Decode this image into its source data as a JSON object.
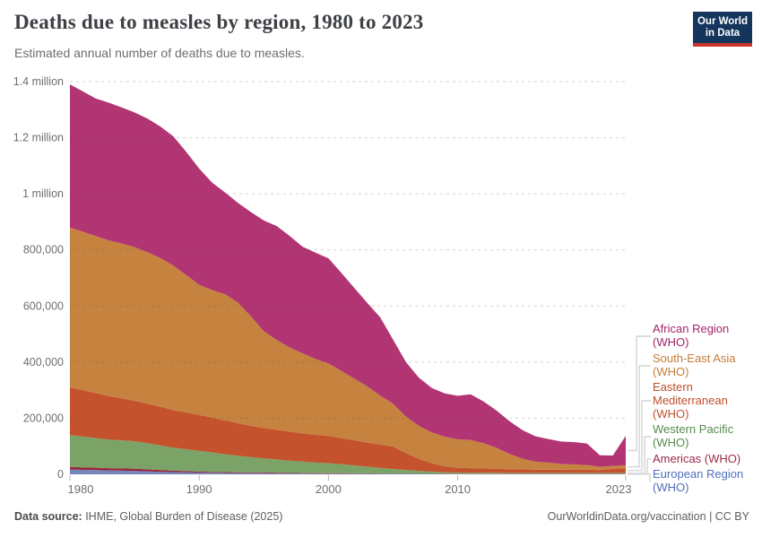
{
  "header": {
    "title": "Deaths due to measles by region, 1980 to 2023",
    "subtitle": "Estimated annual number of deaths due to measles."
  },
  "logo": {
    "line1": "Our World",
    "line2": "in Data",
    "bg_color": "#14355c",
    "bar_color": "#c9352b"
  },
  "footer": {
    "source_label": "Data source:",
    "source_text": " IHME, Global Burden of Disease (2025)",
    "right_text": "OurWorldinData.org/vaccination | CC BY"
  },
  "chart_data": {
    "type": "area",
    "stacked": true,
    "title": "Deaths due to measles by region, 1980 to 2023",
    "subtitle": "Estimated annual number of deaths due to measles.",
    "xlabel": "",
    "ylabel": "",
    "grid": "dashed-horizontal",
    "legend_position": "right",
    "ylim": [
      0,
      1400000
    ],
    "x": [
      1980,
      1981,
      1982,
      1983,
      1984,
      1985,
      1986,
      1987,
      1988,
      1989,
      1990,
      1991,
      1992,
      1993,
      1994,
      1995,
      1996,
      1997,
      1998,
      1999,
      2000,
      2001,
      2002,
      2003,
      2004,
      2005,
      2006,
      2007,
      2008,
      2009,
      2010,
      2011,
      2012,
      2013,
      2014,
      2015,
      2016,
      2017,
      2018,
      2019,
      2020,
      2021,
      2022,
      2023
    ],
    "yticks": [
      {
        "v": 0,
        "label": "0"
      },
      {
        "v": 200000,
        "label": "200,000"
      },
      {
        "v": 400000,
        "label": "400,000"
      },
      {
        "v": 600000,
        "label": "600,000"
      },
      {
        "v": 800000,
        "label": "800,000"
      },
      {
        "v": 1000000,
        "label": "1 million"
      },
      {
        "v": 1200000,
        "label": "1.2 million"
      },
      {
        "v": 1400000,
        "label": "1.4 million"
      }
    ],
    "xticks": [
      {
        "v": 1980,
        "label": "1980"
      },
      {
        "v": 1990,
        "label": "1990"
      },
      {
        "v": 2000,
        "label": "2000"
      },
      {
        "v": 2010,
        "label": "2010"
      },
      {
        "v": 2023,
        "label": "2023"
      }
    ],
    "stack_order": "bottom-to-top",
    "series": [
      {
        "name": "european-region",
        "label": "European Region (WHO)",
        "color": "#7286bb",
        "text_color": "#4d6fbe",
        "values": [
          17000,
          16000,
          15000,
          14000,
          13000,
          12000,
          11000,
          9000,
          8000,
          7000,
          6000,
          5500,
          5000,
          4500,
          4000,
          4000,
          3500,
          3000,
          2500,
          2000,
          2000,
          2000,
          2000,
          2000,
          2000,
          2000,
          1800,
          1600,
          1500,
          1200,
          1000,
          1000,
          1000,
          1000,
          1000,
          1000,
          1000,
          1000,
          1000,
          1000,
          1000,
          1000,
          1000,
          1000
        ]
      },
      {
        "name": "americas",
        "label": "Americas (WHO)",
        "color": "#96283c",
        "text_color": "#9d2a49",
        "values": [
          10000,
          9000,
          8500,
          8000,
          8000,
          8000,
          7000,
          6000,
          5000,
          4500,
          4000,
          3500,
          3000,
          3000,
          3000,
          3000,
          2500,
          2000,
          2000,
          2000,
          2000,
          2000,
          1500,
          1500,
          1000,
          1000,
          1000,
          1000,
          1000,
          1000,
          1000,
          1000,
          1000,
          1000,
          1000,
          1000,
          1000,
          1000,
          1000,
          1000,
          1000,
          1000,
          1000,
          1000
        ]
      },
      {
        "name": "western-pacific",
        "label": "Western Pacific (WHO)",
        "color": "#7ba368",
        "text_color": "#578a4f",
        "values": [
          113000,
          110000,
          106000,
          102000,
          100000,
          98000,
          93000,
          88000,
          82000,
          78000,
          74000,
          69000,
          64000,
          59000,
          54000,
          50000,
          47000,
          44000,
          41000,
          38000,
          36000,
          32000,
          28000,
          24000,
          20000,
          16000,
          13000,
          10000,
          7000,
          5000,
          4000,
          4000,
          4000,
          3500,
          3000,
          3000,
          3000,
          3000,
          3000,
          3000,
          3000,
          3000,
          3000,
          3000
        ]
      },
      {
        "name": "eastern-mediterranean",
        "label": "Eastern Mediterranean (WHO)",
        "color": "#c4522d",
        "text_color": "#bf4e29",
        "values": [
          170000,
          165000,
          160000,
          155000,
          150000,
          144000,
          141000,
          138000,
          134000,
          131000,
          128000,
          124000,
          120000,
          116000,
          112000,
          108000,
          106000,
          103000,
          101000,
          99000,
          97000,
          93000,
          90000,
          86000,
          83000,
          80000,
          60000,
          42000,
          30000,
          22000,
          17000,
          16000,
          15000,
          14000,
          13000,
          13000,
          12000,
          12000,
          12000,
          12000,
          12000,
          10000,
          15000,
          17000
        ]
      },
      {
        "name": "south-east-asia",
        "label": "South-East Asia (WHO)",
        "color": "#c5833f",
        "text_color": "#c47d35",
        "values": [
          570000,
          565000,
          560000,
          555000,
          552000,
          548000,
          540000,
          530000,
          515000,
          490000,
          463000,
          455000,
          450000,
          430000,
          390000,
          345000,
          320000,
          300000,
          285000,
          270000,
          258000,
          240000,
          220000,
          200000,
          175000,
          153000,
          130000,
          118000,
          110000,
          105000,
          102000,
          100000,
          90000,
          75000,
          55000,
          38000,
          28000,
          25000,
          20000,
          18000,
          16000,
          12000,
          10000,
          10000
        ]
      },
      {
        "name": "african-region",
        "label": "African Region (WHO)",
        "color": "#b23573",
        "text_color": "#a62368",
        "values": [
          510000,
          500000,
          490000,
          491000,
          485000,
          480000,
          476000,
          469000,
          461000,
          439000,
          415000,
          383000,
          363000,
          355000,
          372000,
          395000,
          406000,
          398000,
          380000,
          379000,
          375000,
          349000,
          323000,
          298000,
          279000,
          228000,
          194000,
          172000,
          158000,
          154000,
          155000,
          163000,
          149000,
          133000,
          117000,
          102000,
          91000,
          84000,
          80000,
          80000,
          77000,
          41000,
          37000,
          105000
        ]
      }
    ]
  }
}
